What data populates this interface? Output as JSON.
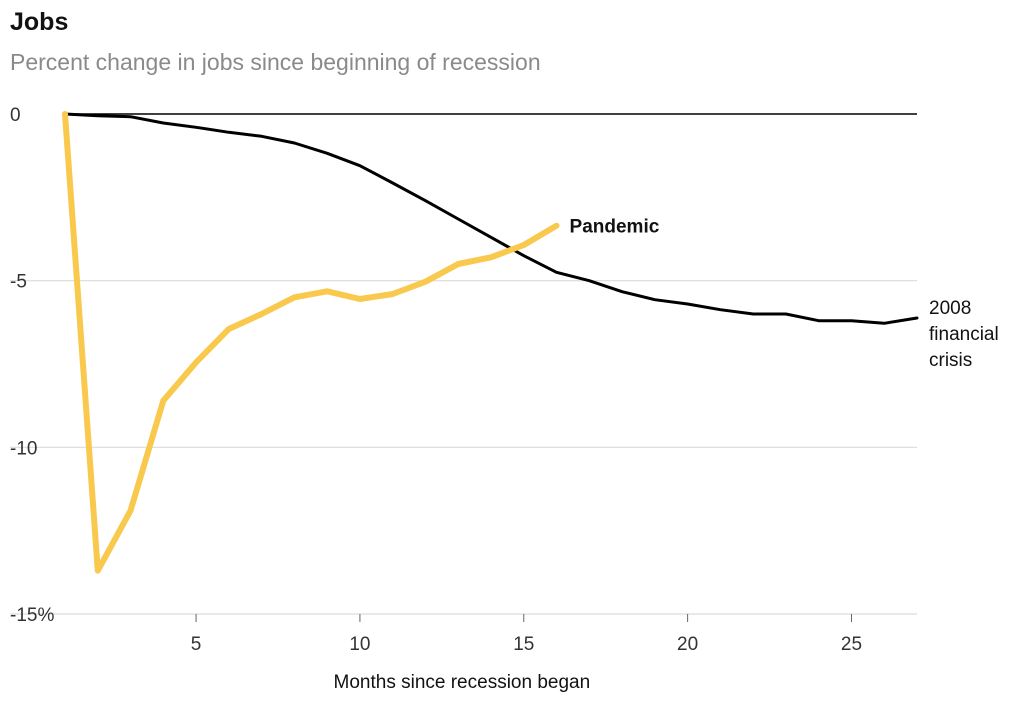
{
  "title": "Jobs",
  "subtitle": "Percent change in jobs since beginning of recession",
  "colors": {
    "pandemic": "#f8c94d",
    "financial_crisis": "#000000",
    "zero_line": "#000000",
    "grid": "#dcdcdc"
  },
  "chart_data": {
    "type": "line",
    "title": "Jobs",
    "subtitle": "Percent change in jobs since beginning of recession",
    "xlabel": "Months since recession began",
    "ylabel": "",
    "xlim": [
      1,
      27
    ],
    "ylim": [
      -15,
      0
    ],
    "x_ticks": [
      5,
      10,
      15,
      20,
      25
    ],
    "y_ticks": [
      0,
      -5,
      -10,
      -15
    ],
    "y_tick_labels": [
      "0",
      "-5",
      "-10",
      "-15%"
    ],
    "grid": true,
    "series": [
      {
        "name": "2008 financial crisis",
        "label_lines": [
          "2008",
          "financial",
          "crisis"
        ],
        "x": [
          1,
          2,
          3,
          4,
          5,
          6,
          7,
          8,
          9,
          10,
          11,
          12,
          13,
          14,
          15,
          16,
          17,
          18,
          19,
          20,
          21,
          22,
          23,
          24,
          25,
          26,
          27
        ],
        "y": [
          0,
          -0.05,
          -0.08,
          -0.27,
          -0.4,
          -0.55,
          -0.67,
          -0.87,
          -1.18,
          -1.55,
          -2.07,
          -2.6,
          -3.15,
          -3.7,
          -4.25,
          -4.75,
          -5.0,
          -5.33,
          -5.57,
          -5.7,
          -5.87,
          -6.0,
          -6.0,
          -6.2,
          -6.2,
          -6.28,
          -6.12
        ]
      },
      {
        "name": "Pandemic",
        "label_lines": [
          "Pandemic"
        ],
        "x": [
          1,
          2,
          3,
          4,
          5,
          6,
          7,
          8,
          9,
          10,
          11,
          12,
          13,
          14,
          15,
          16
        ],
        "y": [
          0,
          -13.7,
          -11.9,
          -8.6,
          -7.45,
          -6.45,
          -6.0,
          -5.5,
          -5.32,
          -5.55,
          -5.4,
          -5.03,
          -4.5,
          -4.3,
          -3.93,
          -3.35
        ]
      }
    ]
  }
}
